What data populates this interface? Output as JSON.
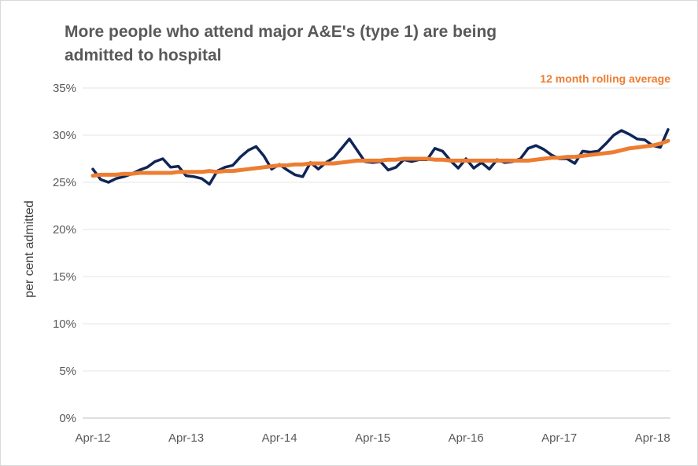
{
  "chart_data": {
    "type": "line",
    "title": "More people who attend major A&E's (type 1) are being admitted to hospital",
    "xlabel": "",
    "ylabel": "per cent admitted",
    "ylim": [
      0,
      35
    ],
    "y_ticks": [
      "0%",
      "5%",
      "10%",
      "15%",
      "20%",
      "25%",
      "30%",
      "35%"
    ],
    "x_ticks": [
      "Apr-12",
      "Apr-13",
      "Apr-14",
      "Apr-15",
      "Apr-16",
      "Apr-17",
      "Apr-18"
    ],
    "grid": true,
    "x": [
      "Apr-12",
      "May-12",
      "Jun-12",
      "Jul-12",
      "Aug-12",
      "Sep-12",
      "Oct-12",
      "Nov-12",
      "Dec-12",
      "Jan-13",
      "Feb-13",
      "Mar-13",
      "Apr-13",
      "May-13",
      "Jun-13",
      "Jul-13",
      "Aug-13",
      "Sep-13",
      "Oct-13",
      "Nov-13",
      "Dec-13",
      "Jan-14",
      "Feb-14",
      "Mar-14",
      "Apr-14",
      "May-14",
      "Jun-14",
      "Jul-14",
      "Aug-14",
      "Sep-14",
      "Oct-14",
      "Nov-14",
      "Dec-14",
      "Jan-15",
      "Feb-15",
      "Mar-15",
      "Apr-15",
      "May-15",
      "Jun-15",
      "Jul-15",
      "Aug-15",
      "Sep-15",
      "Oct-15",
      "Nov-15",
      "Dec-15",
      "Jan-16",
      "Feb-16",
      "Mar-16",
      "Apr-16",
      "May-16",
      "Jun-16",
      "Jul-16",
      "Aug-16",
      "Sep-16",
      "Oct-16",
      "Nov-16",
      "Dec-16",
      "Jan-17",
      "Feb-17",
      "Mar-17",
      "Apr-17",
      "May-17",
      "Jun-17",
      "Jul-17",
      "Aug-17",
      "Sep-17",
      "Oct-17",
      "Nov-17",
      "Dec-17",
      "Jan-18",
      "Feb-18",
      "Mar-18",
      "Apr-18",
      "May-18",
      "Jun-18"
    ],
    "series": [
      {
        "name": "",
        "color": "#0f2557",
        "values": [
          26.4,
          25.3,
          25.0,
          25.4,
          25.6,
          25.9,
          26.3,
          26.6,
          27.2,
          27.5,
          26.6,
          26.7,
          25.7,
          25.6,
          25.4,
          24.8,
          26.2,
          26.6,
          26.8,
          27.7,
          28.4,
          28.8,
          27.8,
          26.4,
          26.9,
          26.3,
          25.8,
          25.6,
          27.1,
          26.4,
          27.1,
          27.6,
          28.6,
          29.6,
          28.4,
          27.2,
          27.1,
          27.2,
          26.3,
          26.6,
          27.4,
          27.2,
          27.4,
          27.4,
          28.6,
          28.3,
          27.3,
          26.5,
          27.5,
          26.5,
          27.1,
          26.4,
          27.4,
          27.1,
          27.2,
          27.5,
          28.6,
          28.9,
          28.5,
          27.9,
          27.5,
          27.5,
          27.0,
          28.3,
          28.2,
          28.3,
          29.1,
          30.0,
          30.5,
          30.1,
          29.6,
          29.5,
          28.9,
          28.7,
          30.6
        ]
      },
      {
        "name": "12 month rolling average",
        "color": "#ed7d31",
        "values": [
          25.7,
          25.8,
          25.8,
          25.8,
          25.9,
          25.9,
          26.0,
          26.0,
          26.0,
          26.0,
          26.0,
          26.1,
          26.1,
          26.1,
          26.1,
          26.2,
          26.1,
          26.2,
          26.2,
          26.3,
          26.4,
          26.5,
          26.6,
          26.7,
          26.8,
          26.8,
          26.9,
          26.9,
          27.0,
          27.0,
          27.0,
          27.0,
          27.1,
          27.2,
          27.3,
          27.3,
          27.3,
          27.3,
          27.4,
          27.4,
          27.5,
          27.5,
          27.5,
          27.5,
          27.4,
          27.4,
          27.3,
          27.3,
          27.3,
          27.3,
          27.3,
          27.3,
          27.3,
          27.3,
          27.3,
          27.3,
          27.3,
          27.4,
          27.5,
          27.6,
          27.6,
          27.7,
          27.7,
          27.8,
          27.9,
          28.0,
          28.1,
          28.2,
          28.4,
          28.6,
          28.7,
          28.8,
          28.9,
          29.1,
          29.4
        ]
      }
    ],
    "legend": "inline-top-right"
  }
}
